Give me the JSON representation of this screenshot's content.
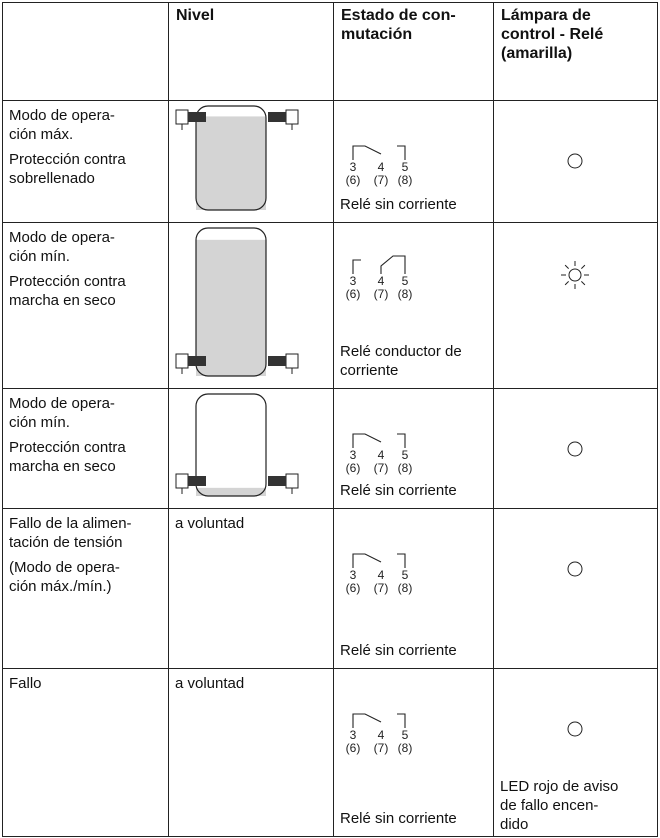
{
  "table": {
    "header": {
      "level": "Nivel",
      "switching": [
        "Estado de con-",
        "mutación"
      ],
      "lamp": [
        "Lámpara de",
        "control - Relé",
        "(amarilla)"
      ]
    },
    "rows": [
      {
        "label": [
          [
            "Modo de opera-",
            "ción máx."
          ],
          [
            "Protección contra",
            "sobrellenado"
          ]
        ],
        "relay": {
          "terminals": [
            "3",
            "4",
            "5"
          ],
          "alt_terminals": [
            "(6)",
            "(7)",
            "(8)"
          ],
          "state": [
            "Relé sin corriente"
          ]
        }
      },
      {
        "label": [
          [
            "Modo de opera-",
            "ción mín."
          ],
          [
            "Protección contra",
            "marcha en seco"
          ]
        ],
        "relay": {
          "terminals": [
            "3",
            "4",
            "5"
          ],
          "alt_terminals": [
            "(6)",
            "(7)",
            "(8)"
          ],
          "state": [
            "Relé conductor de",
            "corriente"
          ]
        }
      },
      {
        "label": [
          [
            "Modo de opera-",
            "ción mín."
          ],
          [
            "Protección contra",
            "marcha en seco"
          ]
        ],
        "relay": {
          "terminals": [
            "3",
            "4",
            "5"
          ],
          "alt_terminals": [
            "(6)",
            "(7)",
            "(8)"
          ],
          "state": [
            "Relé sin corriente"
          ]
        }
      },
      {
        "label": [
          [
            "Fallo de la alimen-",
            "tación de tensión"
          ],
          [
            "(Modo de opera-",
            "ción máx./mín.)"
          ]
        ],
        "level": "a voluntad",
        "relay": {
          "terminals": [
            "3",
            "4",
            "5"
          ],
          "alt_terminals": [
            "(6)",
            "(7)",
            "(8)"
          ],
          "state": [
            "Relé sin corriente"
          ]
        }
      },
      {
        "label": [
          [
            "Fallo"
          ]
        ],
        "level": "a voluntad",
        "relay": {
          "terminals": [
            "3",
            "4",
            "5"
          ],
          "alt_terminals": [
            "(6)",
            "(7)",
            "(8)"
          ],
          "state": [
            "Relé sin corriente"
          ]
        },
        "lamp_note": [
          "LED rojo de aviso",
          "de fallo encen-",
          "dido"
        ]
      }
    ]
  }
}
